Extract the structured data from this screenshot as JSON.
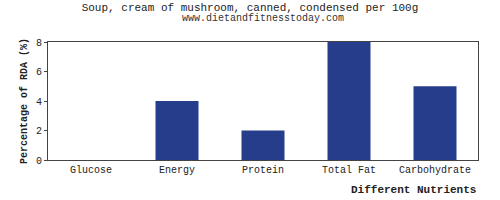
{
  "chart_data": {
    "type": "bar",
    "title": "Soup, cream of mushroom, canned, condensed per 100g",
    "subtitle": "www.dietandfitnesstoday.com",
    "x_label": "Different Nutrients",
    "y_label": "Percentage of RDA (%)",
    "categories": [
      "Glucose",
      "Energy",
      "Protein",
      "Total Fat",
      "Carbohydrate"
    ],
    "values": [
      0,
      4,
      2,
      8,
      5
    ],
    "color": "#263d8c",
    "ylim": [
      0,
      8
    ],
    "yticks": [
      0,
      2,
      4,
      6,
      8
    ],
    "grid": false
  }
}
